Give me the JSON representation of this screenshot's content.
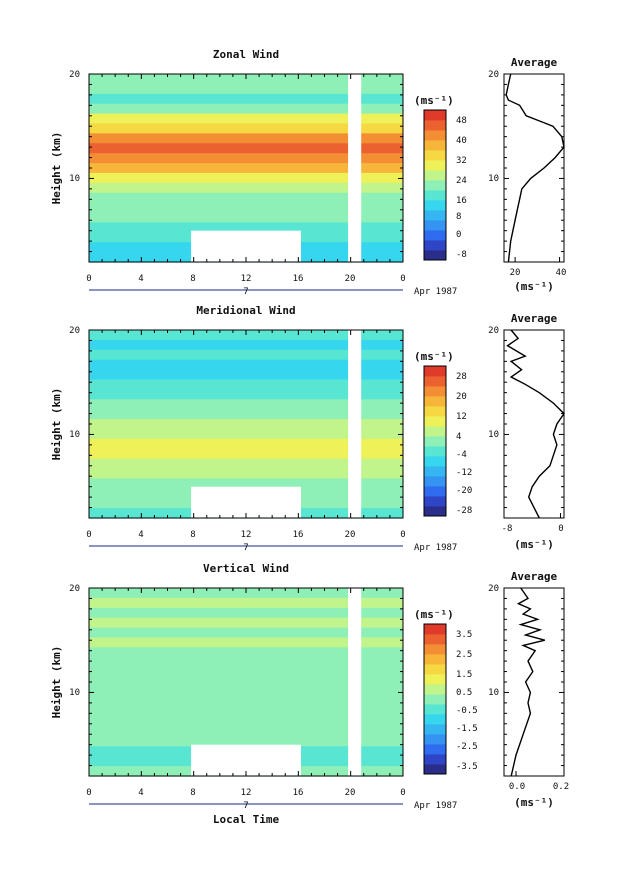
{
  "colorbar_colors": [
    "#2a2e8a",
    "#2f45c8",
    "#2f6cf0",
    "#3594f2",
    "#35b6f0",
    "#36d6ee",
    "#58e6d2",
    "#8ef0b6",
    "#c2f48c",
    "#eef158",
    "#f6d842",
    "#f7b63a",
    "#f48e34",
    "#ec6130",
    "#e03a2a"
  ],
  "panels": [
    {
      "title": "Zonal Wind",
      "ylabel": "Height (km)",
      "yticks": [
        "20",
        "10"
      ],
      "xticks": [
        "0",
        "4",
        "8",
        "12",
        "16",
        "20",
        "0"
      ],
      "date_marker": "7",
      "date_label": "Apr 1987",
      "cbar_unit": "(ms⁻¹)",
      "cbar_labels": [
        "48",
        "40",
        "32",
        "24",
        "16",
        "8",
        "0",
        "-8"
      ],
      "avg_title": "Average",
      "avg_yticks": [
        "20",
        "10"
      ],
      "avg_xticks": [
        "20",
        "40"
      ],
      "avg_unit": "(ms⁻¹)"
    },
    {
      "title": "Meridional Wind",
      "ylabel": "Height (km)",
      "yticks": [
        "20",
        "10"
      ],
      "xticks": [
        "0",
        "4",
        "8",
        "12",
        "16",
        "20",
        "0"
      ],
      "date_marker": "7",
      "date_label": "Apr 1987",
      "cbar_unit": "(ms⁻¹)",
      "cbar_labels": [
        "28",
        "20",
        "12",
        "4",
        "-4",
        "-12",
        "-20",
        "-28"
      ],
      "avg_title": "Average",
      "avg_yticks": [
        "20",
        "10"
      ],
      "avg_xticks": [
        "-8",
        "0"
      ],
      "avg_unit": "(ms⁻¹)"
    },
    {
      "title": "Vertical Wind",
      "ylabel": "Height (km)",
      "yticks": [
        "20",
        "10"
      ],
      "xticks": [
        "0",
        "4",
        "8",
        "12",
        "16",
        "20",
        "0"
      ],
      "date_marker": "7",
      "date_label": "Apr 1987",
      "cbar_unit": "(ms⁻¹)",
      "cbar_labels": [
        "3.5",
        "2.5",
        "1.5",
        "0.5",
        "-0.5",
        "-1.5",
        "-2.5",
        "-3.5"
      ],
      "avg_title": "Average",
      "avg_yticks": [
        "20",
        "10"
      ],
      "avg_xticks": [
        "0.0",
        "0.2"
      ],
      "avg_unit": "(ms⁻¹)",
      "xlabel": "Local Time"
    }
  ],
  "chart_data": [
    {
      "type": "heatmap",
      "title": "Zonal Wind",
      "ylabel": "Height (km)",
      "xlabel": "",
      "x_range_hours": [
        0,
        24
      ],
      "y_range_km": [
        2,
        20
      ],
      "colorbar_range": [
        -8,
        52
      ],
      "colorbar_ticks": [
        48,
        40,
        32,
        24,
        16,
        8,
        0,
        -8
      ],
      "profile_rows_km": [
        20,
        19,
        18,
        17,
        16,
        15,
        14,
        13,
        12,
        11,
        10,
        9,
        8,
        7,
        6,
        5,
        4,
        3,
        2
      ],
      "profile_values": [
        22,
        20,
        18,
        22,
        28,
        34,
        40,
        44,
        42,
        36,
        30,
        24,
        22,
        20,
        20,
        18,
        16,
        14,
        12
      ],
      "missing": [
        {
          "x": [
            7.8,
            16.2
          ],
          "y": [
            2,
            5
          ]
        },
        {
          "x": [
            19.8,
            20.8
          ],
          "y": [
            2,
            20
          ]
        }
      ],
      "average_profile": {
        "type": "line",
        "x": [
          18,
          17,
          16,
          17,
          22,
          25,
          31,
          37,
          41,
          42,
          38,
          33,
          27,
          23,
          22,
          21,
          20,
          19,
          18,
          17
        ],
        "y": [
          20,
          19,
          18,
          17.5,
          17,
          16,
          15.5,
          15,
          14,
          13,
          12,
          11,
          10,
          9,
          8,
          7,
          6,
          5,
          4,
          2
        ],
        "xlim": [
          15,
          42
        ],
        "xticks": [
          20,
          40
        ],
        "ylim": [
          2,
          20
        ]
      }
    },
    {
      "type": "heatmap",
      "title": "Meridional Wind",
      "ylabel": "Height (km)",
      "xlabel": "",
      "x_range_hours": [
        0,
        24
      ],
      "y_range_km": [
        2,
        20
      ],
      "colorbar_range": [
        -32,
        32
      ],
      "colorbar_ticks": [
        28,
        20,
        12,
        4,
        -4,
        -12,
        -20,
        -28
      ],
      "profile_rows_km": [
        20,
        19,
        18,
        17,
        16,
        15,
        14,
        13,
        12,
        11,
        10,
        9,
        8,
        7,
        6,
        5,
        4,
        3,
        2
      ],
      "profile_values": [
        -4,
        -10,
        -6,
        -10,
        -8,
        -6,
        -3,
        0,
        2,
        4,
        6,
        8,
        7,
        5,
        4,
        2,
        0,
        -2,
        -4
      ],
      "missing": [
        {
          "x": [
            7.8,
            16.2
          ],
          "y": [
            2,
            5
          ]
        },
        {
          "x": [
            19.8,
            20.8
          ],
          "y": [
            2,
            20
          ]
        }
      ],
      "average_profile": {
        "type": "line",
        "x": [
          -7,
          -6,
          -7.5,
          -5,
          -7,
          -5.5,
          -7,
          -5,
          -3,
          -1,
          0.5,
          -0.5,
          -1,
          -0.5,
          -1,
          -1.5,
          -3,
          -4,
          -4.5,
          -3
        ],
        "y": [
          20,
          19.2,
          18.5,
          17.5,
          17,
          16.2,
          15.5,
          14.8,
          14,
          13,
          12,
          11,
          10,
          9,
          8,
          7,
          6,
          5,
          4,
          2
        ],
        "xlim": [
          -8,
          0.5
        ],
        "xticks": [
          -8,
          0
        ],
        "ylim": [
          2,
          20
        ]
      }
    },
    {
      "type": "heatmap",
      "title": "Vertical Wind",
      "ylabel": "Height (km)",
      "xlabel": "Local Time",
      "x_range_hours": [
        0,
        24
      ],
      "y_range_km": [
        2,
        20
      ],
      "colorbar_range": [
        -4,
        4
      ],
      "colorbar_ticks": [
        3.5,
        2.5,
        1.5,
        0.5,
        -0.5,
        -1.5,
        -2.5,
        -3.5
      ],
      "profile_rows_km": [
        20,
        19,
        18,
        17,
        16,
        15,
        14,
        13,
        12,
        11,
        10,
        9,
        8,
        7,
        6,
        5,
        4,
        3,
        2
      ],
      "profile_values": [
        0.2,
        0.4,
        0.2,
        0.3,
        0.1,
        0.3,
        0.2,
        0.0,
        0.1,
        0.0,
        0.1,
        0.0,
        -0.1,
        0.0,
        -0.2,
        -0.1,
        -0.3,
        -0.4,
        -0.2
      ],
      "missing": [
        {
          "x": [
            7.8,
            16.2
          ],
          "y": [
            2,
            5
          ]
        },
        {
          "x": [
            19.8,
            20.8
          ],
          "y": [
            2,
            20
          ]
        }
      ],
      "average_profile": {
        "type": "line",
        "x": [
          0.02,
          0.05,
          0.01,
          0.06,
          0.03,
          0.09,
          0.02,
          0.1,
          0.04,
          0.12,
          0.03,
          0.08,
          0.05,
          0.07,
          0.04,
          0.06,
          0.05,
          0.06,
          0.03,
          0.0,
          -0.02
        ],
        "y": [
          20,
          19,
          18.5,
          18,
          17.5,
          17,
          16.5,
          16,
          15.5,
          15,
          14.5,
          14,
          13,
          12,
          11,
          10,
          9,
          8,
          6,
          4,
          2
        ],
        "xlim": [
          -0.05,
          0.2
        ],
        "xticks": [
          0.0,
          0.2
        ],
        "ylim": [
          2,
          20
        ]
      }
    }
  ]
}
